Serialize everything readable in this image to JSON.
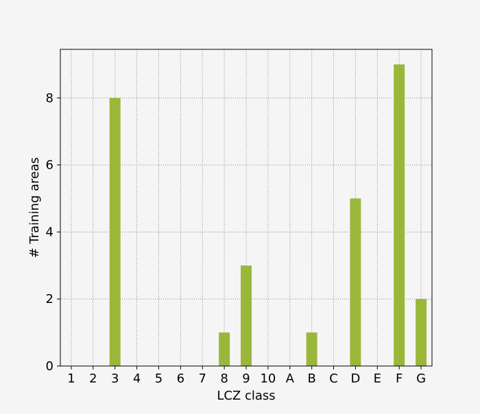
{
  "chart_data": {
    "type": "bar",
    "title": "",
    "xlabel": "LCZ class",
    "ylabel": "# Training areas",
    "categories": [
      "1",
      "2",
      "3",
      "4",
      "5",
      "6",
      "7",
      "8",
      "9",
      "10",
      "A",
      "B",
      "C",
      "D",
      "E",
      "F",
      "G"
    ],
    "values": [
      0,
      0,
      8,
      0,
      0,
      0,
      0,
      1,
      3,
      0,
      0,
      1,
      0,
      5,
      0,
      9,
      2
    ],
    "ylim": [
      0,
      9.45
    ],
    "yticks": [
      0,
      2,
      4,
      6,
      8
    ],
    "grid": true,
    "bar_color": "#9ab73a",
    "background_color": "#f5f5f5",
    "grid_color": "#888888"
  }
}
